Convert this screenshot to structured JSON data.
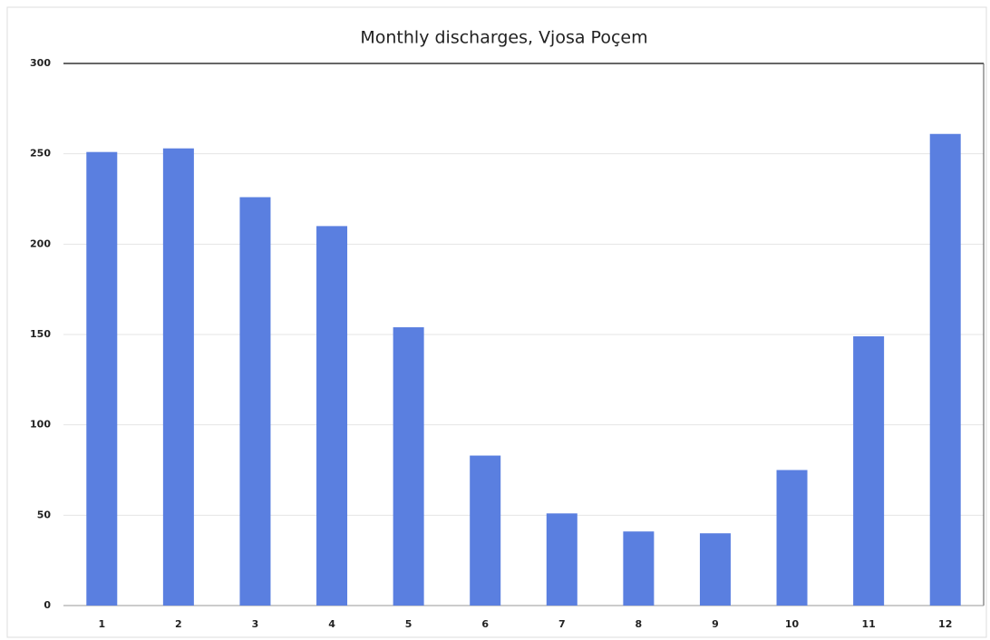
{
  "chart_data": {
    "type": "bar",
    "title": "Monthly discharges, Vjosa Poçem",
    "categories": [
      "1",
      "2",
      "3",
      "4",
      "5",
      "6",
      "7",
      "8",
      "9",
      "10",
      "11",
      "12"
    ],
    "values": [
      251,
      253,
      226,
      210,
      154,
      83,
      51,
      41,
      40,
      75,
      149,
      261
    ],
    "color": "#5a7fe0",
    "ylim": [
      0,
      300
    ],
    "yticks": [
      0,
      50,
      100,
      150,
      200,
      250,
      300
    ],
    "grid": true
  }
}
